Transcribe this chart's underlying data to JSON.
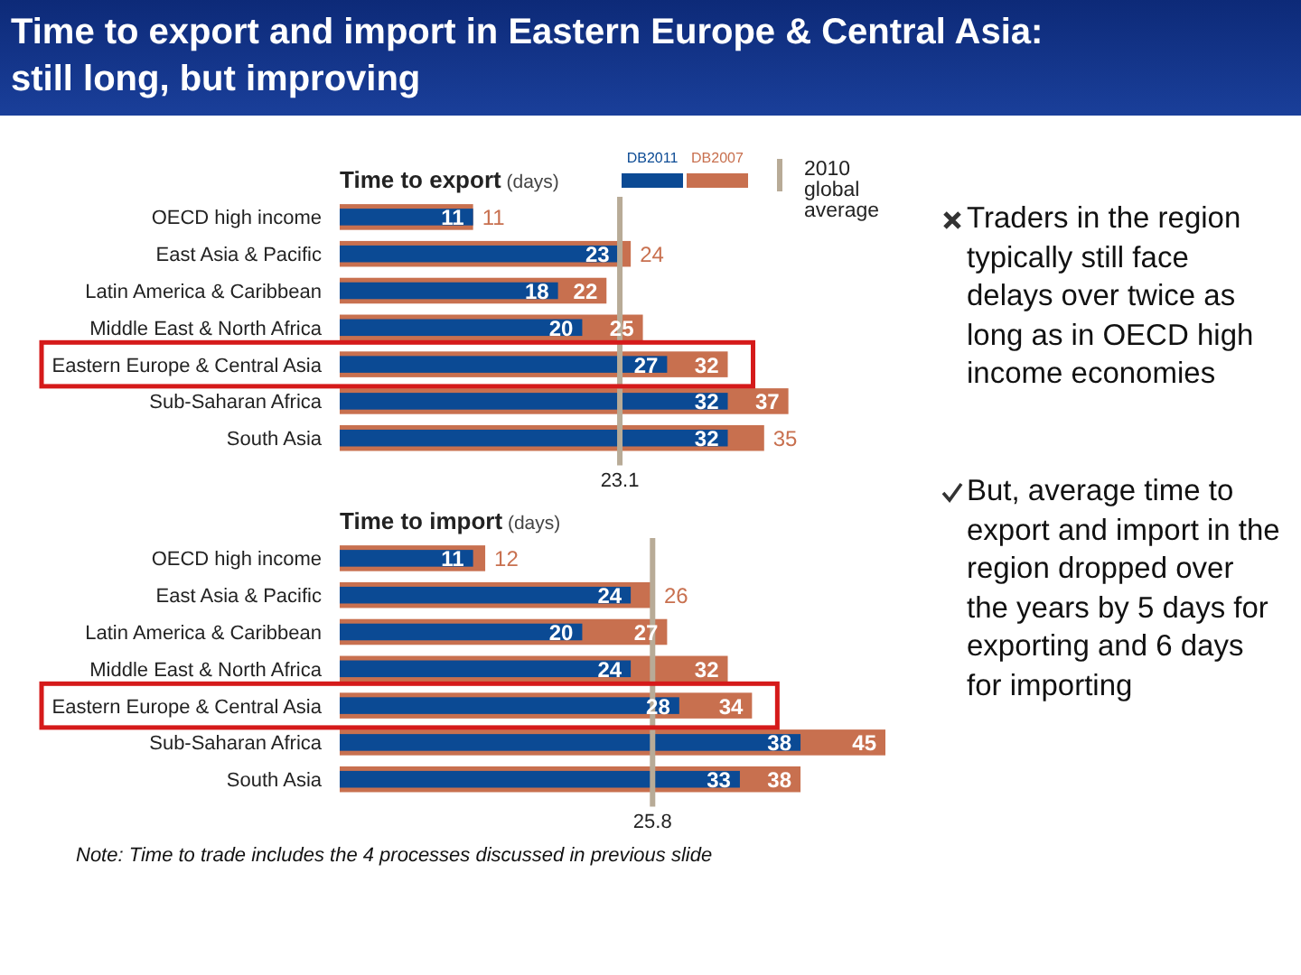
{
  "chart_data": [
    {
      "type": "other",
      "title": "Time to export and import in Eastern Europe & Central Asia: still long, but improving",
      "annotations": [
        "Traders in the region typically still face delays over twice as long as in OECD high income economies",
        "But, average time to export and import in the region dropped over the years by 5 days for exporting and 6 days for importing",
        "Note: Time to trade includes the 4 processes discussed in previous slide"
      ]
    },
    {
      "type": "bar",
      "orientation": "horizontal",
      "title": "Time to export",
      "xlabel": "(days)",
      "categories": [
        "OECD high income",
        "East Asia & Pacific",
        "Latin America & Caribbean",
        "Middle East & North Africa",
        "Eastern Europe & Central Asia",
        "Sub-Saharan Africa",
        "South Asia"
      ],
      "series": [
        {
          "name": "DB2007",
          "color": "#c8704f",
          "values": [
            11,
            24,
            22,
            25,
            32,
            37,
            35
          ]
        },
        {
          "name": "DB2011",
          "color": "#0b4a94",
          "values": [
            11,
            23,
            18,
            20,
            27,
            32,
            32
          ]
        }
      ],
      "tick_labels": "y",
      "data_labels": true,
      "legend": "top right",
      "ref_lines": [
        {
          "axis": "x",
          "value": 23.1,
          "label": "23.1",
          "color": "#b8ab97"
        }
      ],
      "annotations": [
        "2010 global average"
      ]
    },
    {
      "type": "bar",
      "orientation": "horizontal",
      "title": "Time to import",
      "xlabel": "(days)",
      "categories": [
        "OECD high income",
        "East Asia & Pacific",
        "Latin America & Caribbean",
        "Middle East & North Africa",
        "Eastern Europe & Central Asia",
        "Sub-Saharan Africa",
        "South Asia"
      ],
      "series": [
        {
          "color": "#c8704f",
          "values": [
            12,
            26,
            27,
            32,
            34,
            45,
            38
          ]
        },
        {
          "color": "#0b4a94",
          "values": [
            11,
            24,
            20,
            24,
            28,
            38,
            33
          ]
        }
      ],
      "tick_labels": "y",
      "data_labels": true,
      "ref_lines": [
        {
          "axis": "x",
          "value": 25.8,
          "label": "25.8",
          "color": "#b8ab97"
        }
      ]
    }
  ]
}
